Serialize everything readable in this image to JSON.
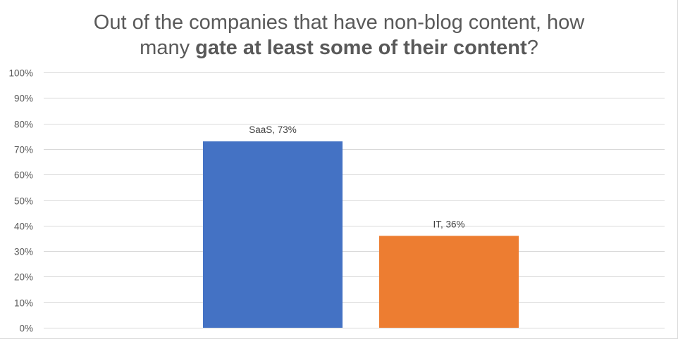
{
  "chart_data": {
    "type": "bar",
    "title_line1": "Out of the companies that have non-blog content, how",
    "title_line2_pre": "many ",
    "title_line2_bold": "gate at least some of their content",
    "title_line2_post": "?",
    "categories": [
      "SaaS",
      "IT"
    ],
    "values": [
      73,
      36
    ],
    "data_labels": [
      "SaaS, 73%",
      "IT, 36%"
    ],
    "colors": [
      "#4472C4",
      "#ED7D31"
    ],
    "ylim": [
      0,
      100
    ],
    "yticks": [
      0,
      10,
      20,
      30,
      40,
      50,
      60,
      70,
      80,
      90,
      100
    ],
    "ytick_labels": [
      "0%",
      "10%",
      "20%",
      "30%",
      "40%",
      "50%",
      "60%",
      "70%",
      "80%",
      "90%",
      "100%"
    ],
    "grid": true,
    "gridline_color": "#d9d9d9",
    "xlabel": "",
    "ylabel": ""
  }
}
